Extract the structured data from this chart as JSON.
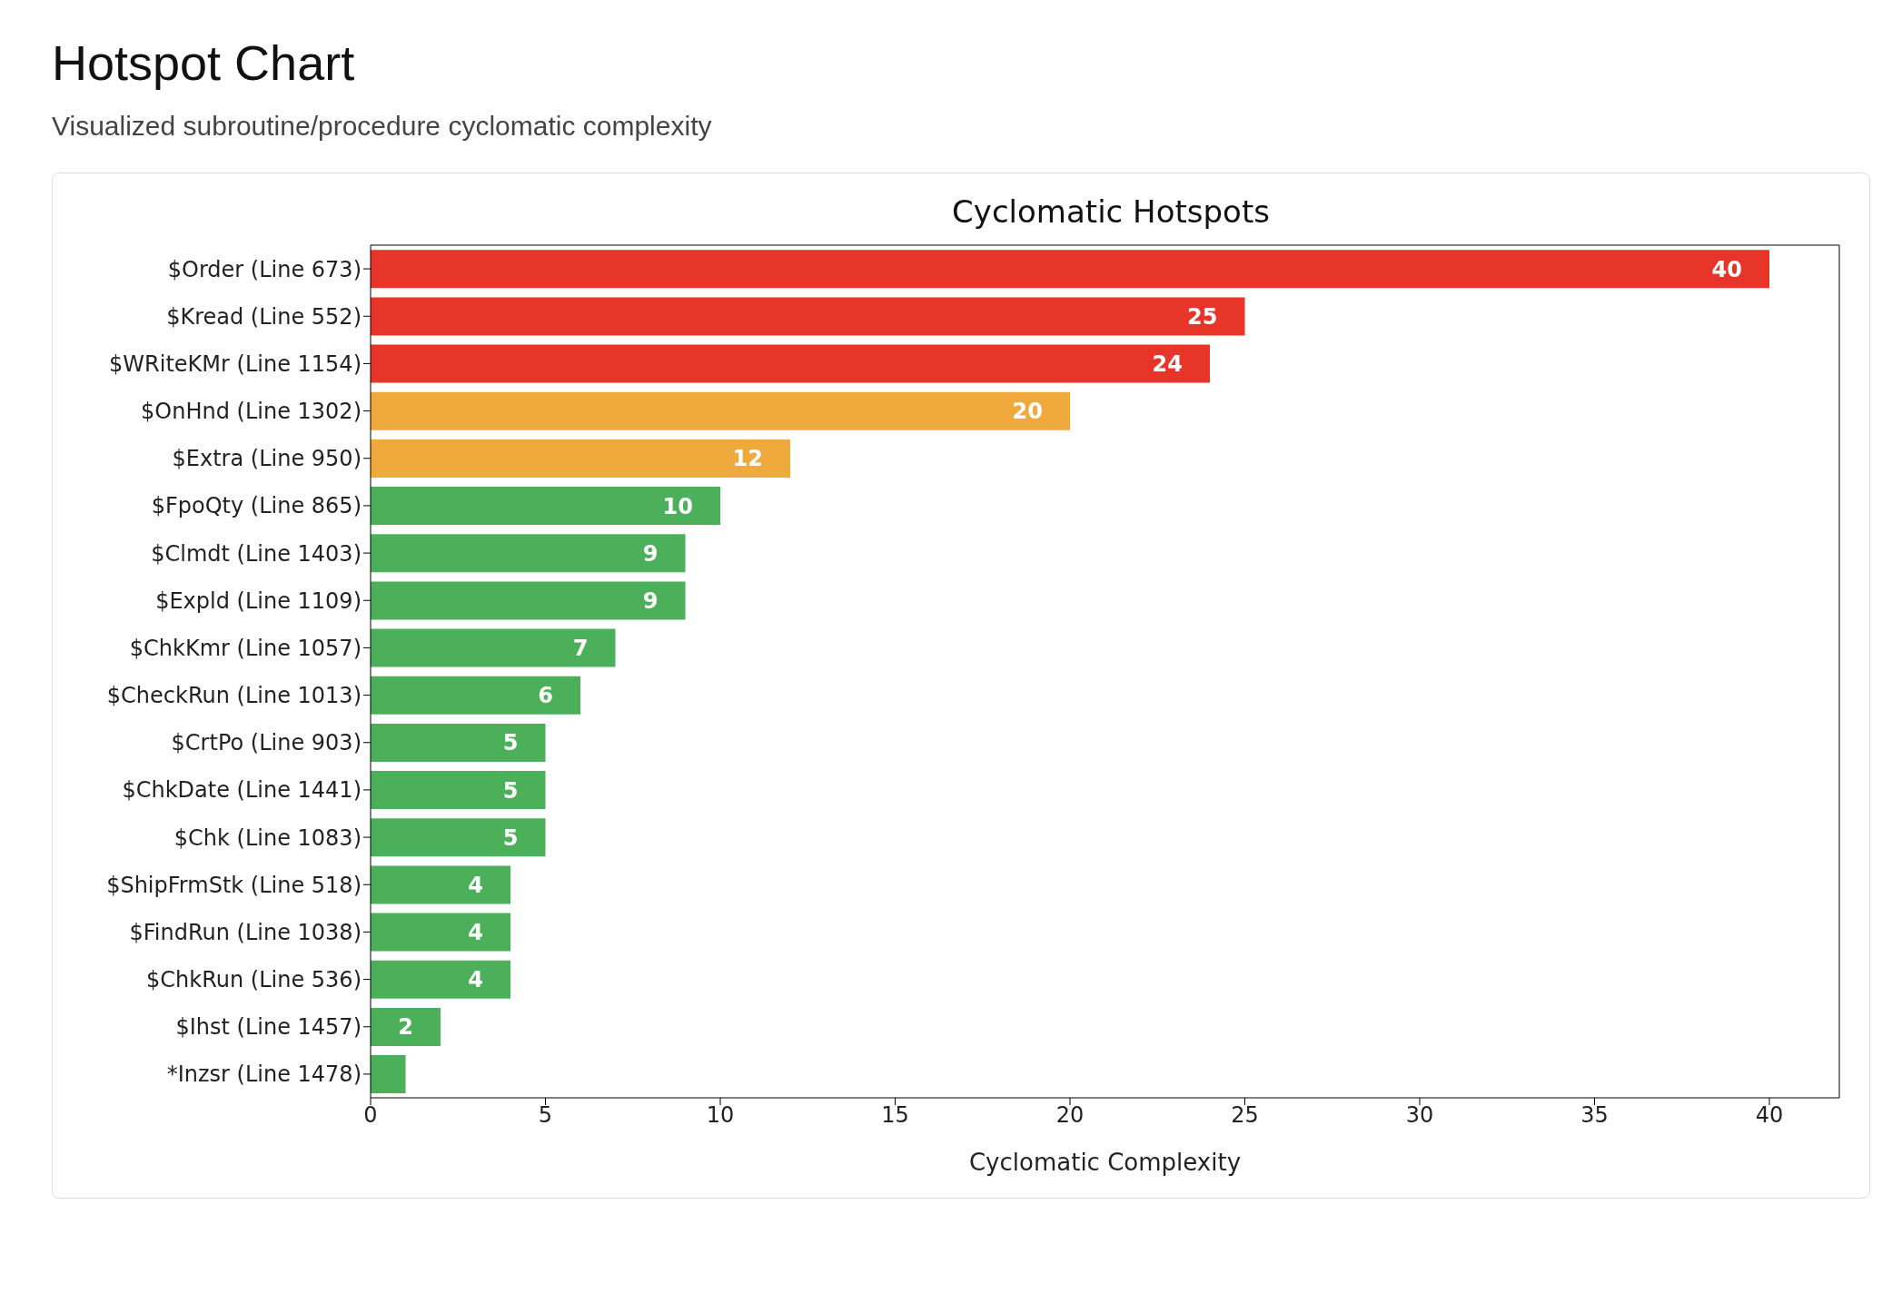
{
  "chart_data": {
    "type": "bar",
    "orientation": "horizontal",
    "title": "Cyclomatic Hotspots",
    "annotations": [
      "Hotspot Chart",
      "Visualized subroutine/procedure cyclomatic complexity"
    ],
    "xlabel": "Cyclomatic Complexity",
    "categories": [
      "$Order (Line 673)",
      "$Kread (Line 552)",
      "$WRiteKMr (Line 1154)",
      "$OnHnd (Line 1302)",
      "$Extra (Line 950)",
      "$FpoQty (Line 865)",
      "$Clmdt (Line 1403)",
      "$Expld (Line 1109)",
      "$ChkKmr (Line 1057)",
      "$CheckRun (Line 1013)",
      "$CrtPo (Line 903)",
      "$ChkDate (Line 1441)",
      "$Chk (Line 1083)",
      "$ShipFrmStk (Line 518)",
      "$FindRun (Line 1038)",
      "$ChkRun (Line 536)",
      "$Ihst (Line 1457)",
      "*Inzsr (Line 1478)"
    ],
    "values": [
      40,
      25,
      24,
      20,
      12,
      10,
      9,
      9,
      7,
      6,
      5,
      5,
      5,
      4,
      4,
      4,
      2,
      1
    ],
    "value_labels": [
      "40",
      "25",
      "24",
      "20",
      "12",
      "10",
      "9",
      "9",
      "7",
      "6",
      "5",
      "5",
      "5",
      "4",
      "4",
      "4",
      "2",
      null
    ],
    "colors": [
      "#e8352a",
      "#e8352a",
      "#e8352a",
      "#f0a93c",
      "#f0a93c",
      "#4caf5a",
      "#4caf5a",
      "#4caf5a",
      "#4caf5a",
      "#4caf5a",
      "#4caf5a",
      "#4caf5a",
      "#4caf5a",
      "#4caf5a",
      "#4caf5a",
      "#4caf5a",
      "#4caf5a",
      "#4caf5a"
    ],
    "xlim": [
      0,
      42
    ],
    "xticks": [
      0,
      5,
      10,
      15,
      20,
      25,
      30,
      35,
      40
    ],
    "grid": false,
    "legend": false
  }
}
